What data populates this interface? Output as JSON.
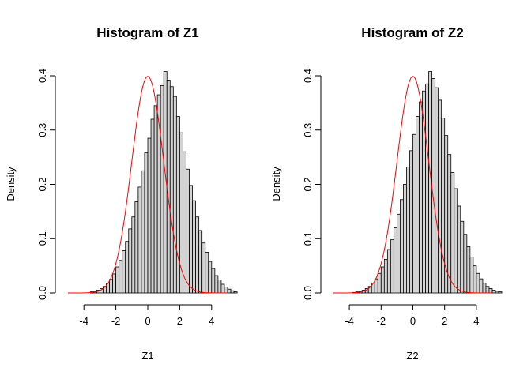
{
  "chart_data": [
    {
      "type": "bar",
      "title": "Histogram of Z1",
      "xlabel": "Z1",
      "ylabel": "Density",
      "xlim": [
        -5,
        5
      ],
      "ylim": [
        0,
        0.4
      ],
      "x_ticks": [
        -4,
        -2,
        0,
        2,
        4
      ],
      "y_ticks": [
        0.0,
        0.1,
        0.2,
        0.3,
        0.4
      ],
      "x_tick_labels": [
        "-4",
        "-2",
        "0",
        "2",
        "4"
      ],
      "y_tick_labels": [
        "0.0",
        "0.1",
        "0.2",
        "0.3",
        "0.4"
      ],
      "bin_start": -3.6,
      "bin_width": 0.2,
      "values": [
        0.002,
        0.003,
        0.005,
        0.008,
        0.012,
        0.018,
        0.025,
        0.035,
        0.048,
        0.06,
        0.078,
        0.095,
        0.118,
        0.14,
        0.168,
        0.195,
        0.225,
        0.258,
        0.285,
        0.32,
        0.345,
        0.365,
        0.382,
        0.408,
        0.392,
        0.38,
        0.362,
        0.325,
        0.295,
        0.26,
        0.228,
        0.198,
        0.17,
        0.14,
        0.115,
        0.092,
        0.075,
        0.058,
        0.045,
        0.032,
        0.024,
        0.016,
        0.011,
        0.007,
        0.004,
        0.002
      ],
      "curve": "normal density, mean 0, sd 1",
      "bar_color": "#d3d3d3",
      "curve_color": "#ff0000"
    },
    {
      "type": "bar",
      "title": "Histogram of Z2",
      "xlabel": "Z2",
      "ylabel": "Density",
      "xlim": [
        -5,
        5
      ],
      "ylim": [
        0,
        0.4
      ],
      "x_ticks": [
        -4,
        -2,
        0,
        2,
        4
      ],
      "y_ticks": [
        0.0,
        0.1,
        0.2,
        0.3,
        0.4
      ],
      "x_tick_labels": [
        "-4",
        "-2",
        "0",
        "2",
        "4"
      ],
      "y_tick_labels": [
        "0.0",
        "0.1",
        "0.2",
        "0.3",
        "0.4"
      ],
      "bin_start": -3.8,
      "bin_width": 0.2,
      "values": [
        0.001,
        0.002,
        0.003,
        0.005,
        0.008,
        0.012,
        0.018,
        0.026,
        0.036,
        0.048,
        0.062,
        0.08,
        0.098,
        0.12,
        0.145,
        0.172,
        0.2,
        0.232,
        0.262,
        0.292,
        0.325,
        0.352,
        0.372,
        0.385,
        0.408,
        0.395,
        0.378,
        0.355,
        0.322,
        0.29,
        0.255,
        0.222,
        0.192,
        0.16,
        0.132,
        0.108,
        0.085,
        0.066,
        0.05,
        0.036,
        0.026,
        0.018,
        0.012,
        0.008,
        0.005,
        0.003,
        0.002
      ],
      "curve": "normal density, mean 0, sd 1",
      "bar_color": "#d3d3d3",
      "curve_color": "#ff0000"
    }
  ]
}
